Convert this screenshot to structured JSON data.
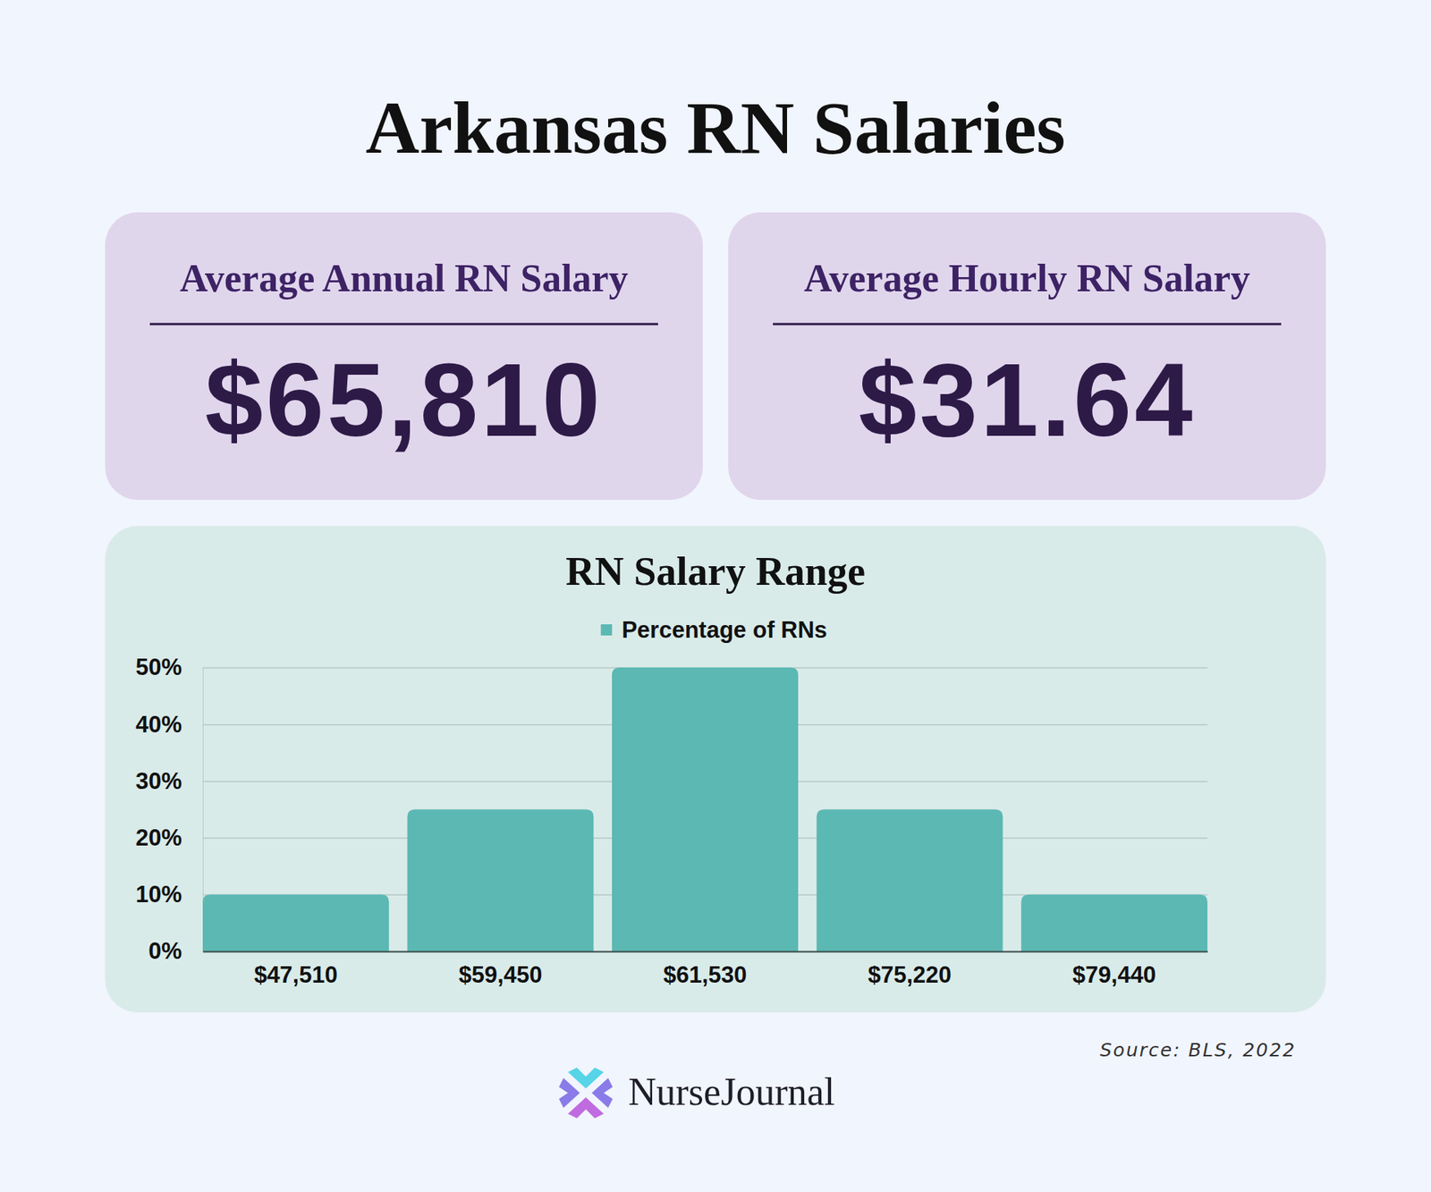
{
  "page": {
    "title": "Arkansas RN Salaries",
    "cards": [
      {
        "label": "Average Annual RN Salary",
        "value": "$65,810"
      },
      {
        "label": "Average Hourly RN Salary",
        "value": "$31.64"
      }
    ],
    "source": "Source: BLS, 2022",
    "brand": "NurseJournal"
  },
  "chart_data": {
    "type": "bar",
    "title": "RN Salary Range",
    "categories": [
      "$47,510",
      "$59,450",
      "$61,530",
      "$75,220",
      "$79,440"
    ],
    "series": [
      {
        "name": "Percentage of RNs",
        "color": "#5bb8b2",
        "values": [
          10,
          25,
          50,
          25,
          10
        ]
      }
    ],
    "ylim": [
      0,
      50
    ],
    "yticks": [
      {
        "value": 0,
        "label": "0%"
      },
      {
        "value": 10,
        "label": "10%"
      },
      {
        "value": 20,
        "label": "20%"
      },
      {
        "value": 30,
        "label": "30%"
      },
      {
        "value": 40,
        "label": "40%"
      },
      {
        "value": 50,
        "label": "50%"
      }
    ],
    "grid": true,
    "legend": "top"
  }
}
